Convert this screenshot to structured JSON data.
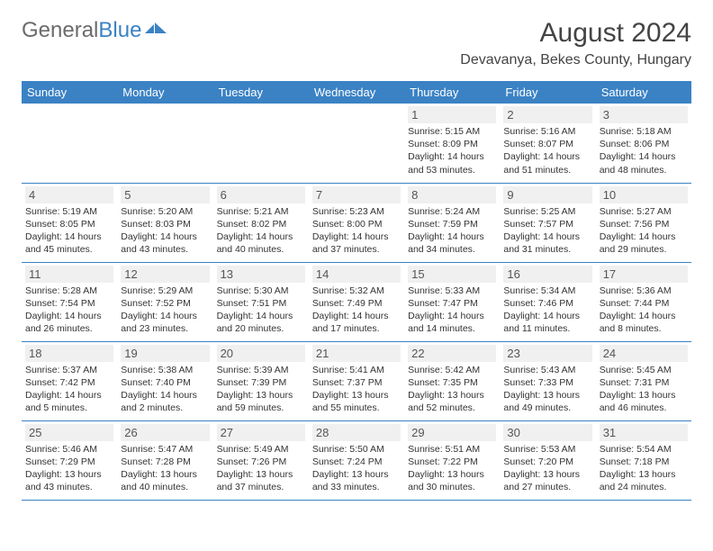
{
  "brand": {
    "word1": "General",
    "word2": "Blue"
  },
  "header": {
    "title": "August 2024",
    "location": "Devavanya, Bekes County, Hungary"
  },
  "styling": {
    "header_bg": "#3b82c4",
    "header_text": "#ffffff",
    "day_bg": "#f0f0f0",
    "border_color": "#3b82c4",
    "logo_gray": "#6b6b6b",
    "logo_blue": "#3b82c4",
    "body_text": "#333333",
    "title_fontsize": 30,
    "location_fontsize": 16,
    "dayheader_fontsize": 13,
    "cell_fontsize": 10.5
  },
  "day_names": [
    "Sunday",
    "Monday",
    "Tuesday",
    "Wednesday",
    "Thursday",
    "Friday",
    "Saturday"
  ],
  "weeks": [
    [
      {},
      {},
      {},
      {},
      {
        "n": "1",
        "sr": "5:15 AM",
        "ss": "8:09 PM",
        "dlh": "14",
        "dlm": "53"
      },
      {
        "n": "2",
        "sr": "5:16 AM",
        "ss": "8:07 PM",
        "dlh": "14",
        "dlm": "51"
      },
      {
        "n": "3",
        "sr": "5:18 AM",
        "ss": "8:06 PM",
        "dlh": "14",
        "dlm": "48"
      }
    ],
    [
      {
        "n": "4",
        "sr": "5:19 AM",
        "ss": "8:05 PM",
        "dlh": "14",
        "dlm": "45"
      },
      {
        "n": "5",
        "sr": "5:20 AM",
        "ss": "8:03 PM",
        "dlh": "14",
        "dlm": "43"
      },
      {
        "n": "6",
        "sr": "5:21 AM",
        "ss": "8:02 PM",
        "dlh": "14",
        "dlm": "40"
      },
      {
        "n": "7",
        "sr": "5:23 AM",
        "ss": "8:00 PM",
        "dlh": "14",
        "dlm": "37"
      },
      {
        "n": "8",
        "sr": "5:24 AM",
        "ss": "7:59 PM",
        "dlh": "14",
        "dlm": "34"
      },
      {
        "n": "9",
        "sr": "5:25 AM",
        "ss": "7:57 PM",
        "dlh": "14",
        "dlm": "31"
      },
      {
        "n": "10",
        "sr": "5:27 AM",
        "ss": "7:56 PM",
        "dlh": "14",
        "dlm": "29"
      }
    ],
    [
      {
        "n": "11",
        "sr": "5:28 AM",
        "ss": "7:54 PM",
        "dlh": "14",
        "dlm": "26"
      },
      {
        "n": "12",
        "sr": "5:29 AM",
        "ss": "7:52 PM",
        "dlh": "14",
        "dlm": "23"
      },
      {
        "n": "13",
        "sr": "5:30 AM",
        "ss": "7:51 PM",
        "dlh": "14",
        "dlm": "20"
      },
      {
        "n": "14",
        "sr": "5:32 AM",
        "ss": "7:49 PM",
        "dlh": "14",
        "dlm": "17"
      },
      {
        "n": "15",
        "sr": "5:33 AM",
        "ss": "7:47 PM",
        "dlh": "14",
        "dlm": "14"
      },
      {
        "n": "16",
        "sr": "5:34 AM",
        "ss": "7:46 PM",
        "dlh": "14",
        "dlm": "11"
      },
      {
        "n": "17",
        "sr": "5:36 AM",
        "ss": "7:44 PM",
        "dlh": "14",
        "dlm": "8"
      }
    ],
    [
      {
        "n": "18",
        "sr": "5:37 AM",
        "ss": "7:42 PM",
        "dlh": "14",
        "dlm": "5"
      },
      {
        "n": "19",
        "sr": "5:38 AM",
        "ss": "7:40 PM",
        "dlh": "14",
        "dlm": "2"
      },
      {
        "n": "20",
        "sr": "5:39 AM",
        "ss": "7:39 PM",
        "dlh": "13",
        "dlm": "59"
      },
      {
        "n": "21",
        "sr": "5:41 AM",
        "ss": "7:37 PM",
        "dlh": "13",
        "dlm": "55"
      },
      {
        "n": "22",
        "sr": "5:42 AM",
        "ss": "7:35 PM",
        "dlh": "13",
        "dlm": "52"
      },
      {
        "n": "23",
        "sr": "5:43 AM",
        "ss": "7:33 PM",
        "dlh": "13",
        "dlm": "49"
      },
      {
        "n": "24",
        "sr": "5:45 AM",
        "ss": "7:31 PM",
        "dlh": "13",
        "dlm": "46"
      }
    ],
    [
      {
        "n": "25",
        "sr": "5:46 AM",
        "ss": "7:29 PM",
        "dlh": "13",
        "dlm": "43"
      },
      {
        "n": "26",
        "sr": "5:47 AM",
        "ss": "7:28 PM",
        "dlh": "13",
        "dlm": "40"
      },
      {
        "n": "27",
        "sr": "5:49 AM",
        "ss": "7:26 PM",
        "dlh": "13",
        "dlm": "37"
      },
      {
        "n": "28",
        "sr": "5:50 AM",
        "ss": "7:24 PM",
        "dlh": "13",
        "dlm": "33"
      },
      {
        "n": "29",
        "sr": "5:51 AM",
        "ss": "7:22 PM",
        "dlh": "13",
        "dlm": "30"
      },
      {
        "n": "30",
        "sr": "5:53 AM",
        "ss": "7:20 PM",
        "dlh": "13",
        "dlm": "27"
      },
      {
        "n": "31",
        "sr": "5:54 AM",
        "ss": "7:18 PM",
        "dlh": "13",
        "dlm": "24"
      }
    ]
  ]
}
